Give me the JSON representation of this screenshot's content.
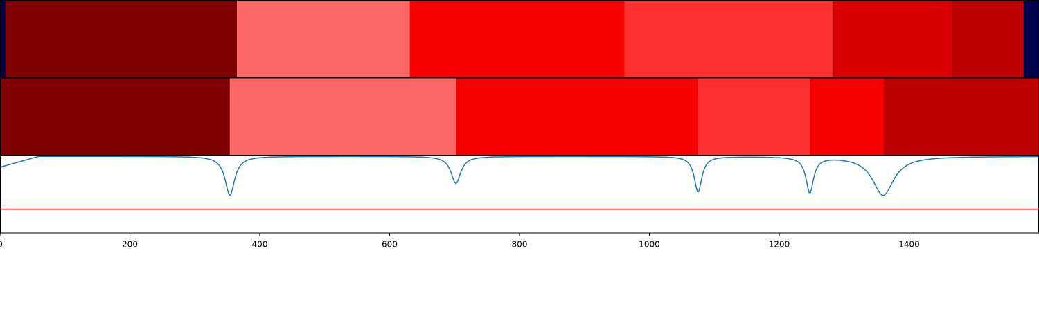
{
  "chart_data": {
    "type": "heatmap",
    "xlim": [
      0,
      1600
    ],
    "x_ticks": [
      0,
      200,
      400,
      600,
      800,
      1000,
      1200,
      1400
    ],
    "x_tick_labels": [
      "0",
      "200",
      "400",
      "600",
      "800",
      "1000",
      "1200",
      "1400"
    ],
    "xlabel": "",
    "ylabel": "",
    "grid": false,
    "rows": [
      {
        "segments": [
          {
            "start": 0,
            "end": 8,
            "color": "#00004c"
          },
          {
            "start": 8,
            "end": 365,
            "color": "#7f0000"
          },
          {
            "start": 365,
            "end": 631,
            "color": "#ff6666"
          },
          {
            "start": 631,
            "end": 962,
            "color": "#f70000"
          },
          {
            "start": 962,
            "end": 1283,
            "color": "#ff3030"
          },
          {
            "start": 1283,
            "end": 1465,
            "color": "#d80000"
          },
          {
            "start": 1465,
            "end": 1576,
            "color": "#bb0000"
          },
          {
            "start": 1576,
            "end": 1600,
            "color": "#00004c"
          }
        ]
      },
      {
        "segments": [
          {
            "start": 0,
            "end": 354,
            "color": "#7f0000"
          },
          {
            "start": 354,
            "end": 702,
            "color": "#ff6666"
          },
          {
            "start": 702,
            "end": 1075,
            "color": "#f70000"
          },
          {
            "start": 1075,
            "end": 1247,
            "color": "#ff3030"
          },
          {
            "start": 1247,
            "end": 1360,
            "color": "#f70000"
          },
          {
            "start": 1360,
            "end": 1600,
            "color": "#bb0000"
          }
        ]
      }
    ],
    "line_panel": {
      "ylim": [
        0,
        1
      ],
      "threshold": 0.31,
      "threshold_color": "#ff0000",
      "series_color": "#1f77b4",
      "base_level": 0.99,
      "start_level": 0.85,
      "start_rise_end": 60,
      "dips": [
        {
          "x": 354,
          "depth": 0.5,
          "width": 9
        },
        {
          "x": 702,
          "depth": 0.35,
          "width": 9
        },
        {
          "x": 1075,
          "depth": 0.46,
          "width": 7
        },
        {
          "x": 1247,
          "depth": 0.46,
          "width": 7
        },
        {
          "x": 1360,
          "depth": 0.5,
          "width": 20
        }
      ]
    }
  }
}
